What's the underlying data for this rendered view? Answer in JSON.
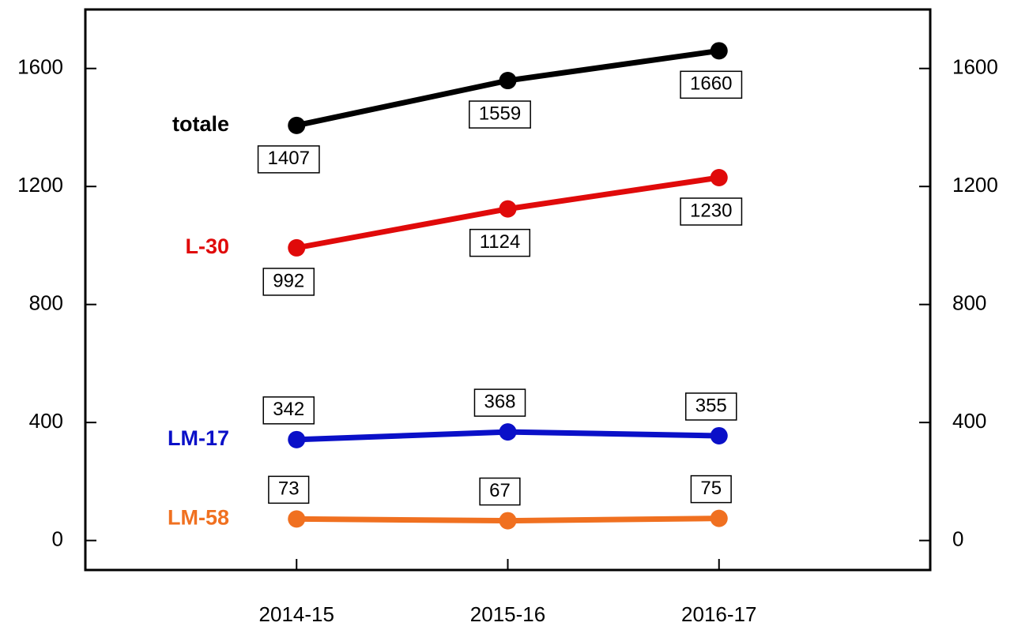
{
  "chart_data": {
    "type": "line",
    "categories": [
      "2014-15",
      "2015-16",
      "2016-17"
    ],
    "series": [
      {
        "name": "totale",
        "color": "#000000",
        "values": [
          1407,
          1559,
          1660
        ]
      },
      {
        "name": "L-30",
        "color": "#e00a0a",
        "values": [
          992,
          1124,
          1230
        ]
      },
      {
        "name": "LM-17",
        "color": "#0a10c8",
        "values": [
          342,
          368,
          355
        ]
      },
      {
        "name": "LM-58",
        "color": "#f07020",
        "values": [
          73,
          67,
          75
        ]
      }
    ],
    "ylim": [
      -100,
      1800
    ],
    "yticks": [
      0,
      400,
      800,
      1200,
      1600
    ]
  }
}
